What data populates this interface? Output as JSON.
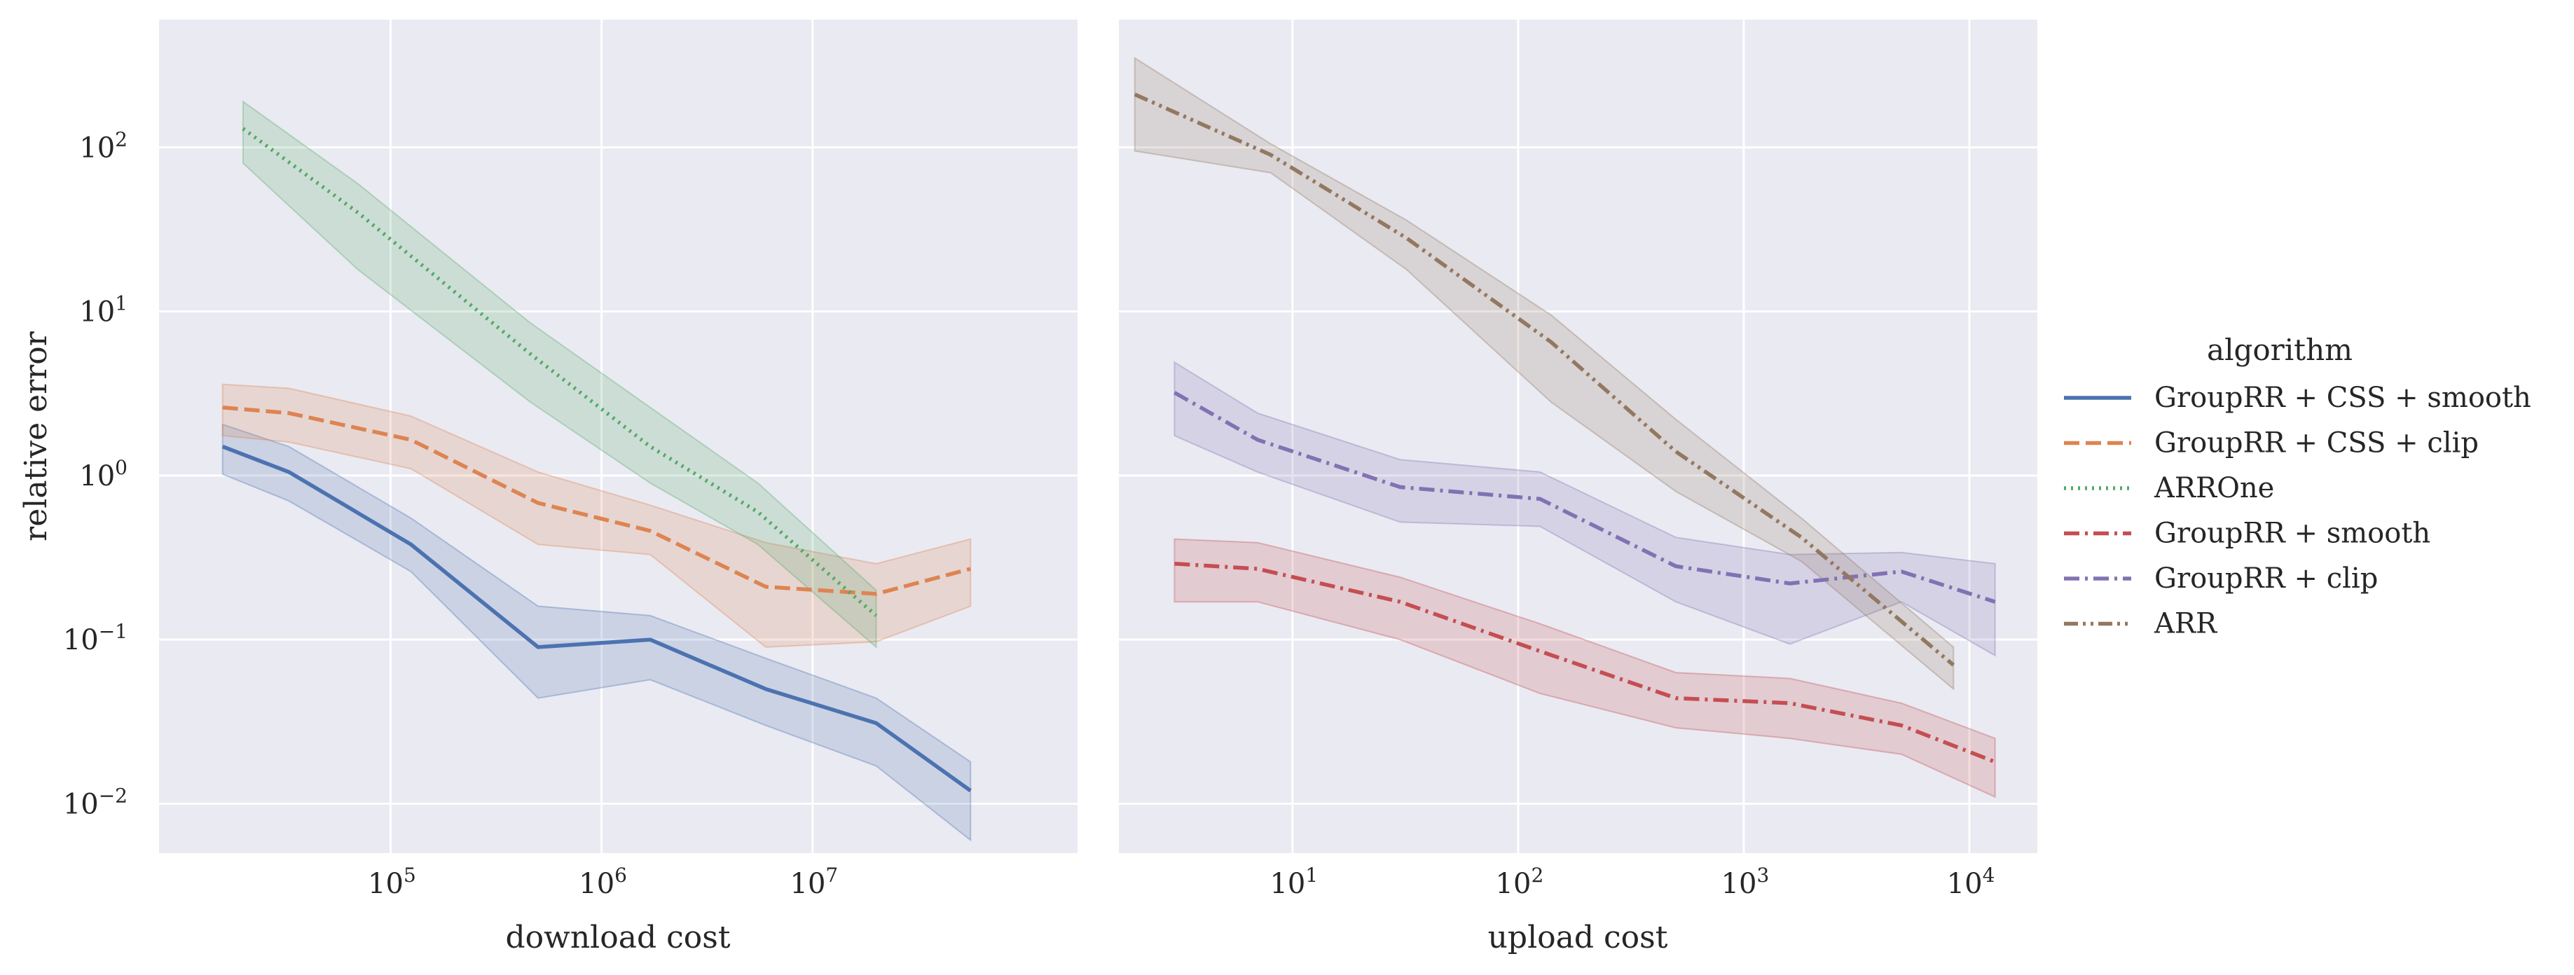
{
  "chart_data": [
    {
      "type": "line",
      "panel": "left",
      "xlabel": "download cost",
      "ylabel": "relative error",
      "xscale": "log",
      "yscale": "log",
      "xlim": [
        8000,
        180000000
      ],
      "ylim": [
        0.005,
        600
      ],
      "x_ticks": [
        {
          "base": "10",
          "exp": "5",
          "value": 100000
        },
        {
          "base": "10",
          "exp": "6",
          "value": 1000000
        },
        {
          "base": "10",
          "exp": "7",
          "value": 10000000
        }
      ],
      "y_ticks": [
        {
          "base": "10",
          "exp": "2",
          "value": 100
        },
        {
          "base": "10",
          "exp": "1",
          "value": 10
        },
        {
          "base": "10",
          "exp": "0",
          "value": 1
        },
        {
          "base": "10",
          "exp": "−1",
          "value": 0.1
        },
        {
          "base": "10",
          "exp": "−2",
          "value": 0.01
        }
      ],
      "series": [
        {
          "name": "GroupRR + CSS + smooth",
          "x": [
            16000,
            33000,
            125000,
            500000,
            1700000,
            6000000,
            20000000,
            56000000
          ],
          "y": [
            1.5,
            1.05,
            0.38,
            0.09,
            0.1,
            0.05,
            0.031,
            0.012
          ],
          "lo": [
            1.02,
            0.7,
            0.26,
            0.044,
            0.057,
            0.03,
            0.017,
            0.006
          ],
          "hi": [
            2.05,
            1.5,
            0.55,
            0.16,
            0.14,
            0.077,
            0.044,
            0.018
          ]
        },
        {
          "name": "GroupRR + CSS + clip",
          "x": [
            16000,
            33000,
            125000,
            500000,
            1700000,
            6000000,
            20000000,
            56000000
          ],
          "y": [
            2.6,
            2.4,
            1.65,
            0.68,
            0.46,
            0.21,
            0.19,
            0.27
          ],
          "lo": [
            1.75,
            1.6,
            1.1,
            0.38,
            0.33,
            0.09,
            0.097,
            0.16
          ],
          "hi": [
            3.6,
            3.4,
            2.3,
            1.05,
            0.66,
            0.39,
            0.29,
            0.41
          ]
        },
        {
          "name": "ARROne",
          "x": [
            20000,
            70000,
            460000,
            1700000,
            5500000,
            20000000
          ],
          "y": [
            130,
            40,
            5.5,
            1.5,
            0.6,
            0.14
          ],
          "lo": [
            80,
            18,
            2.8,
            0.9,
            0.38,
            0.09
          ],
          "hi": [
            190,
            60,
            8.5,
            2.6,
            0.9,
            0.2
          ]
        }
      ]
    },
    {
      "type": "line",
      "panel": "right",
      "xlabel": "upload cost",
      "ylabel": "",
      "xscale": "log",
      "yscale": "log",
      "xlim": [
        1.7,
        20000
      ],
      "ylim": [
        0.005,
        600
      ],
      "x_ticks": [
        {
          "base": "10",
          "exp": "1",
          "value": 10
        },
        {
          "base": "10",
          "exp": "2",
          "value": 100
        },
        {
          "base": "10",
          "exp": "3",
          "value": 1000
        },
        {
          "base": "10",
          "exp": "4",
          "value": 10000
        }
      ],
      "series": [
        {
          "name": "GroupRR + smooth",
          "x": [
            3,
            7,
            30,
            125,
            500,
            1600,
            5000,
            13000
          ],
          "y": [
            0.29,
            0.27,
            0.17,
            0.085,
            0.044,
            0.041,
            0.03,
            0.018
          ],
          "lo": [
            0.17,
            0.17,
            0.1,
            0.047,
            0.029,
            0.025,
            0.02,
            0.011
          ],
          "hi": [
            0.41,
            0.39,
            0.24,
            0.125,
            0.063,
            0.058,
            0.041,
            0.025
          ]
        },
        {
          "name": "GroupRR + clip",
          "x": [
            3,
            7,
            30,
            125,
            500,
            1600,
            5000,
            13000
          ],
          "y": [
            3.2,
            1.65,
            0.85,
            0.72,
            0.28,
            0.22,
            0.26,
            0.17
          ],
          "lo": [
            1.75,
            1.05,
            0.52,
            0.49,
            0.17,
            0.094,
            0.17,
            0.08
          ],
          "hi": [
            4.9,
            2.4,
            1.25,
            1.05,
            0.42,
            0.33,
            0.34,
            0.29
          ]
        },
        {
          "name": "ARR",
          "x": [
            2,
            8,
            32,
            140,
            500,
            1800,
            8500
          ],
          "y": [
            210,
            90,
            28,
            6.5,
            1.4,
            0.42,
            0.07
          ],
          "lo": [
            95,
            70,
            18,
            2.8,
            0.8,
            0.3,
            0.05
          ],
          "hi": [
            350,
            105,
            36,
            9.5,
            2.2,
            0.55,
            0.09
          ]
        }
      ]
    }
  ],
  "legend": {
    "title": "algorithm",
    "entries": [
      {
        "label": "GroupRR + CSS + smooth",
        "color": "#4c72b0",
        "dash": "solid"
      },
      {
        "label": "GroupRR + CSS + clip",
        "color": "#dd8452",
        "dash": "dashed"
      },
      {
        "label": "ARROne",
        "color": "#55a868",
        "dash": "dotted"
      },
      {
        "label": "GroupRR + smooth",
        "color": "#c44e52",
        "dash": "dashdot"
      },
      {
        "label": "GroupRR + clip",
        "color": "#8172b3",
        "dash": "dashdot"
      },
      {
        "label": "ARR",
        "color": "#937860",
        "dash": "dashdotdot"
      }
    ]
  },
  "colors": {
    "panel_bg": "#eaeaf2",
    "grid": "#ffffff",
    "text": "#262626"
  }
}
